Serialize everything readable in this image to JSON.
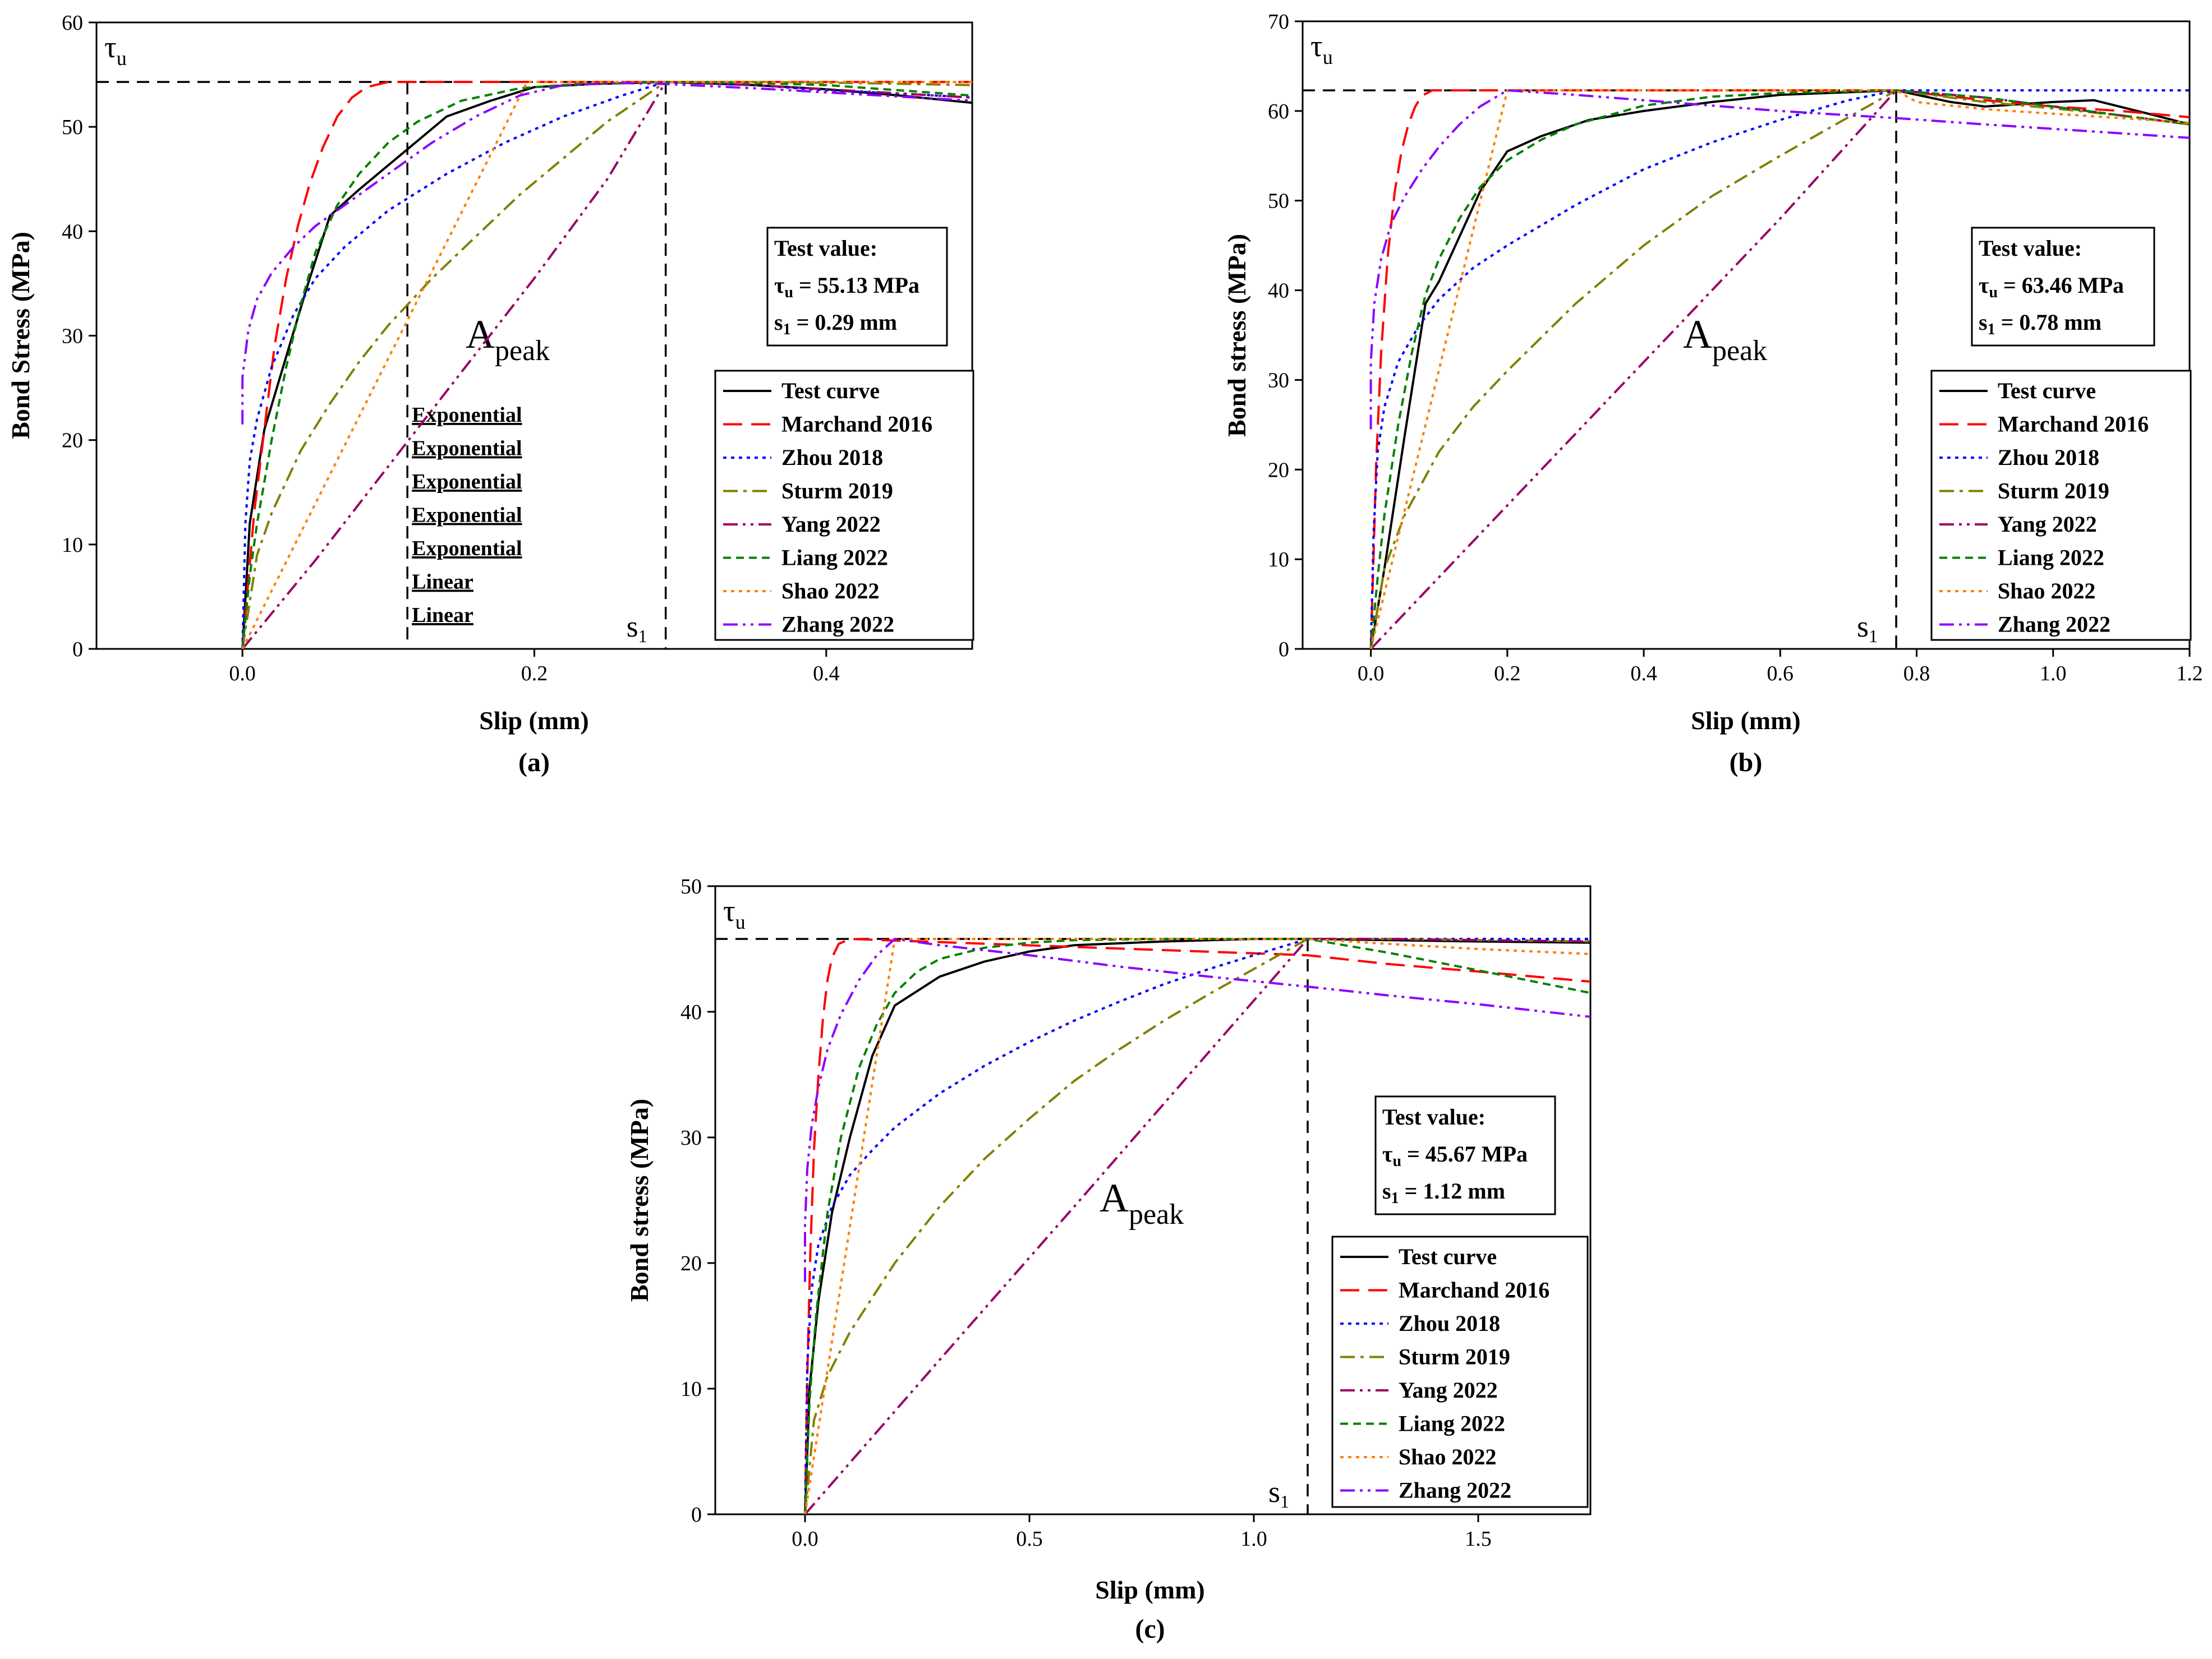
{
  "colors": {
    "Test curve": "#000000",
    "Marchand 2016": "#ff0000",
    "Zhou 2018": "#0000ff",
    "Sturm 2019": "#808000",
    "Yang 2022": "#990066",
    "Liang 2022": "#008000",
    "Shao 2022": "#ff8000",
    "Zhang 2022": "#8b00ff"
  },
  "chart_data": [
    {
      "type": "line",
      "panel_label": "(a)",
      "xlabel": "Slip (mm)",
      "ylabel": "Bond Stress (MPa)",
      "xlim": [
        -0.1,
        0.5
      ],
      "ylim": [
        0,
        60
      ],
      "xticks": [
        0.0,
        0.2,
        0.4
      ],
      "xtick_labels": [
        "0.0",
        "0.2",
        "0.4"
      ],
      "yticks": [
        0,
        10,
        20,
        30,
        40,
        50,
        60
      ],
      "ytick_labels": [
        "0",
        "10",
        "20",
        "30",
        "40",
        "50",
        "60"
      ],
      "tau_u_symbol": "τ",
      "tau_u_sub": "u",
      "tau_line_y": 54.3,
      "s1_x": 0.29,
      "s1_symbol": "s",
      "s1_sub": "1",
      "area_label": "A",
      "area_sub": "peak",
      "divider_x": 0.113,
      "side_labels": [
        "Exponential",
        "Exponential",
        "Exponential",
        "Exponential",
        "Exponential",
        "Linear",
        "Linear"
      ],
      "test_box": {
        "title": "Test value:",
        "tau_prefix": "τ",
        "tau_sub": "u",
        "tau_value": " = 55.13 MPa",
        "s_prefix": "s",
        "s_sub": "1",
        "s_value": " = 0.29 mm"
      },
      "legend_position": "right",
      "series": [
        {
          "name": "Test curve",
          "style": "solid",
          "x": [
            0,
            0.005,
            0.015,
            0.03,
            0.045,
            0.06,
            0.08,
            0.11,
            0.14,
            0.17,
            0.2,
            0.24,
            0.29,
            0.35,
            0.4,
            0.45,
            0.5
          ],
          "y": [
            0,
            12,
            21,
            28,
            35,
            41.5,
            44,
            47.5,
            51,
            52.5,
            53.8,
            54.1,
            54.3,
            54,
            53.6,
            53,
            52.3
          ]
        },
        {
          "name": "Marchand 2016",
          "style": "dashed",
          "x": [
            0,
            0.008,
            0.015,
            0.022,
            0.03,
            0.038,
            0.046,
            0.055,
            0.065,
            0.075,
            0.085,
            0.1,
            0.29,
            0.5
          ],
          "y": [
            0,
            13,
            21,
            29,
            35.5,
            40.5,
            44.5,
            48,
            51,
            52.8,
            53.8,
            54.3,
            54.3,
            54.3
          ]
        },
        {
          "name": "Zhou 2018",
          "style": "dotted",
          "x": [
            0,
            0.002,
            0.005,
            0.01,
            0.02,
            0.035,
            0.05,
            0.07,
            0.1,
            0.14,
            0.18,
            0.22,
            0.26,
            0.29,
            0.35,
            0.4,
            0.45,
            0.5
          ],
          "y": [
            0,
            12,
            18,
            22,
            27,
            32,
            35.5,
            38.5,
            42,
            45.5,
            48.5,
            51,
            53,
            54.3,
            54,
            53.5,
            53.2,
            52.8
          ]
        },
        {
          "name": "Sturm 2019",
          "style": "dashdot",
          "x": [
            0,
            0.01,
            0.02,
            0.04,
            0.06,
            0.08,
            0.1,
            0.13,
            0.16,
            0.19,
            0.22,
            0.25,
            0.29,
            0.35,
            0.42,
            0.5
          ],
          "y": [
            0,
            9,
            13,
            19,
            23.5,
            27.5,
            31,
            35.5,
            39.5,
            43.5,
            47,
            50.5,
            54.3,
            54.3,
            54.2,
            54
          ]
        },
        {
          "name": "Yang 2022",
          "style": "dashdotdot",
          "x": [
            0,
            0.05,
            0.1,
            0.15,
            0.2,
            0.25,
            0.29,
            0.35,
            0.4,
            0.45,
            0.5
          ],
          "y": [
            0,
            8.5,
            17.5,
            26.5,
            35.5,
            45,
            54.3,
            54,
            53.6,
            53.2,
            52.8
          ]
        },
        {
          "name": "Liang 2022",
          "style": "shortdash",
          "x": [
            0,
            0.005,
            0.01,
            0.02,
            0.03,
            0.04,
            0.05,
            0.065,
            0.08,
            0.1,
            0.12,
            0.15,
            0.19,
            0.23,
            0.29,
            0.35,
            0.4,
            0.45,
            0.5
          ],
          "y": [
            0,
            7,
            12,
            20,
            27,
            33,
            38,
            42.5,
            45.5,
            48.5,
            50.5,
            52.5,
            53.7,
            54.1,
            54.3,
            54.2,
            54,
            53.5,
            53
          ]
        },
        {
          "name": "Shao 2022",
          "style": "dotted",
          "x": [
            0,
            0.195,
            0.29,
            0.35,
            0.4,
            0.45,
            0.5
          ],
          "y": [
            0,
            54.3,
            54.3,
            54.3,
            54.3,
            54.3,
            54.3
          ]
        },
        {
          "name": "Zhang 2022",
          "style": "dashdotdot",
          "x": [
            0,
            0.0,
            0.004,
            0.01,
            0.02,
            0.035,
            0.05,
            0.07,
            0.1,
            0.13,
            0.16,
            0.19,
            0.22,
            0.26,
            0.29,
            0.35,
            0.4,
            0.45,
            0.5
          ],
          "y": [
            21.5,
            26,
            30.5,
            33.5,
            36,
            38.5,
            40.5,
            42.5,
            45.5,
            48.5,
            51,
            53,
            54,
            54.2,
            54.1,
            53.7,
            53.3,
            52.9,
            52.5
          ]
        }
      ]
    },
    {
      "type": "line",
      "panel_label": "(b)",
      "xlabel": "Slip (mm)",
      "ylabel": "Bond stress (MPa)",
      "xlim": [
        -0.1,
        1.2
      ],
      "ylim": [
        0,
        70
      ],
      "xticks": [
        -0.0,
        0.2,
        0.4,
        0.6,
        0.8,
        1.0,
        1.2
      ],
      "xtick_labels": [
        "0.0",
        "0.2",
        "0.4",
        "0.6",
        "0.8",
        "1.0",
        "1.2"
      ],
      "yticks": [
        0,
        10,
        20,
        30,
        40,
        50,
        60,
        70
      ],
      "ytick_labels": [
        "0",
        "10",
        "20",
        "30",
        "40",
        "50",
        "60",
        "70"
      ],
      "tau_u_symbol": "τ",
      "tau_u_sub": "u",
      "tau_line_y": 62.3,
      "s1_x": 0.77,
      "s1_symbol": "s",
      "s1_sub": "1",
      "area_label": "A",
      "area_sub": "peak",
      "test_box": {
        "title": "Test value:",
        "tau_prefix": "τ",
        "tau_sub": "u",
        "tau_value": " = 63.46 MPa",
        "s_prefix": "s",
        "s_sub": "1",
        "s_value": " = 0.78 mm"
      },
      "legend_position": "right",
      "series": [
        {
          "name": "Test curve",
          "style": "solid",
          "x": [
            0,
            0.02,
            0.05,
            0.08,
            0.1,
            0.13,
            0.16,
            0.2,
            0.25,
            0.32,
            0.4,
            0.5,
            0.6,
            0.77,
            0.85,
            0.9,
            1.0,
            1.06,
            1.15,
            1.2
          ],
          "y": [
            0,
            9,
            24,
            38.5,
            41,
            46,
            51,
            55.5,
            57.2,
            59,
            60,
            61,
            61.8,
            62.3,
            61,
            60.5,
            61,
            61.2,
            59.5,
            58.5
          ]
        },
        {
          "name": "Marchand 2016",
          "style": "dashed",
          "x": [
            0,
            0.008,
            0.015,
            0.025,
            0.035,
            0.045,
            0.055,
            0.065,
            0.075,
            0.09,
            0.77,
            0.9,
            1.0,
            1.1,
            1.2
          ],
          "y": [
            0,
            21,
            33,
            44,
            51,
            55.5,
            58.5,
            60.5,
            61.7,
            62.3,
            62.3,
            61.2,
            60.5,
            60,
            59.3
          ]
        },
        {
          "name": "Zhou 2018",
          "style": "dotted",
          "x": [
            0,
            0.004,
            0.01,
            0.02,
            0.04,
            0.07,
            0.1,
            0.15,
            0.2,
            0.3,
            0.4,
            0.5,
            0.6,
            0.7,
            0.77,
            0.9,
            1.0,
            1.1,
            1.2
          ],
          "y": [
            0,
            13,
            22,
            27,
            32,
            36,
            39,
            42.5,
            45,
            49.5,
            53.5,
            56.5,
            59,
            61.2,
            62.3,
            62.3,
            62.3,
            62.3,
            62.3
          ]
        },
        {
          "name": "Sturm 2019",
          "style": "dashdot",
          "x": [
            0,
            0.02,
            0.05,
            0.1,
            0.15,
            0.2,
            0.3,
            0.4,
            0.5,
            0.6,
            0.7,
            0.77,
            0.9,
            1.0,
            1.1,
            1.2
          ],
          "y": [
            0,
            9,
            15,
            22,
            27,
            31,
            38.5,
            45,
            50.5,
            55,
            59.3,
            62.3,
            61,
            60.3,
            59.5,
            58.5
          ]
        },
        {
          "name": "Yang 2022",
          "style": "dashdotdot",
          "x": [
            0,
            0.2,
            0.4,
            0.6,
            0.77,
            0.9,
            1.0,
            1.1,
            1.2
          ],
          "y": [
            0,
            16,
            32,
            48,
            62.3,
            61.5,
            60.5,
            59.5,
            58.5
          ]
        },
        {
          "name": "Liang 2022",
          "style": "shortdash",
          "x": [
            0,
            0.01,
            0.02,
            0.04,
            0.06,
            0.08,
            0.1,
            0.13,
            0.16,
            0.2,
            0.25,
            0.3,
            0.4,
            0.5,
            0.6,
            0.77,
            0.9,
            1.0,
            1.1,
            1.2
          ],
          "y": [
            0,
            8,
            15,
            25,
            33,
            39.5,
            43.5,
            48,
            51.5,
            54.5,
            56.8,
            58.5,
            60.6,
            61.6,
            62,
            62.3,
            61.5,
            60.5,
            59.5,
            58.5
          ]
        },
        {
          "name": "Shao 2022",
          "style": "dotted",
          "x": [
            0,
            0.2,
            0.77,
            0.8,
            0.9,
            1.0,
            1.1,
            1.2
          ],
          "y": [
            0,
            62.3,
            62.3,
            61,
            60.2,
            59.7,
            59.2,
            58.7
          ]
        },
        {
          "name": "Zhang 2022",
          "style": "dashdotdot",
          "x": [
            0,
            0.0,
            0.005,
            0.015,
            0.03,
            0.05,
            0.075,
            0.1,
            0.13,
            0.16,
            0.2,
            0.3,
            0.4,
            0.5,
            0.6,
            0.77,
            0.9,
            1.0,
            1.1,
            1.2
          ],
          "y": [
            24.5,
            32,
            38.5,
            43.5,
            47.5,
            50.5,
            53.5,
            56,
            58.5,
            60.5,
            62.3,
            61.8,
            61.2,
            60.6,
            60,
            59.2,
            58.5,
            58,
            57.5,
            57
          ]
        }
      ]
    },
    {
      "type": "line",
      "panel_label": "(c)",
      "xlabel": "Slip (mm)",
      "ylabel": "Bond stress (MPa)",
      "xlim": [
        -0.2,
        1.75
      ],
      "ylim": [
        0,
        50
      ],
      "xticks": [
        0.0,
        0.5,
        1.0,
        1.5
      ],
      "xtick_labels": [
        "0.0",
        "0.5",
        "1.0",
        "1.5"
      ],
      "yticks": [
        0,
        10,
        20,
        30,
        40,
        50
      ],
      "ytick_labels": [
        "0",
        "10",
        "20",
        "30",
        "40",
        "50"
      ],
      "tau_u_symbol": "τ",
      "tau_u_sub": "u",
      "tau_line_y": 45.8,
      "s1_x": 1.12,
      "s1_symbol": "s",
      "s1_sub": "1",
      "area_label": "A",
      "area_sub": "peak",
      "test_box": {
        "title": "Test value:",
        "tau_prefix": "τ",
        "tau_sub": "u",
        "tau_value": " = 45.67 MPa",
        "s_prefix": "s",
        "s_sub": "1",
        "s_value": " = 1.12 mm"
      },
      "legend_position": "right",
      "series": [
        {
          "name": "Test curve",
          "style": "solid",
          "x": [
            0,
            0.01,
            0.03,
            0.06,
            0.1,
            0.15,
            0.2,
            0.3,
            0.4,
            0.5,
            0.6,
            0.8,
            1.0,
            1.12,
            1.3,
            1.5,
            1.75
          ],
          "y": [
            0,
            10,
            17,
            24,
            30,
            36.5,
            40.5,
            42.8,
            44,
            44.8,
            45.3,
            45.6,
            45.8,
            45.8,
            45.7,
            45.6,
            45.5
          ]
        },
        {
          "name": "Marchand 2016",
          "style": "dashed",
          "x": [
            0,
            0.005,
            0.012,
            0.02,
            0.03,
            0.04,
            0.05,
            0.06,
            0.075,
            0.1,
            1.12,
            1.3,
            1.5,
            1.75
          ],
          "y": [
            0,
            11,
            21,
            29,
            35,
            39.5,
            42.5,
            44.3,
            45.4,
            45.8,
            44.5,
            43.8,
            43.2,
            42.4
          ]
        },
        {
          "name": "Zhou 2018",
          "style": "dotted",
          "x": [
            0,
            0.005,
            0.015,
            0.03,
            0.06,
            0.1,
            0.15,
            0.2,
            0.3,
            0.4,
            0.5,
            0.6,
            0.7,
            0.8,
            0.9,
            1.0,
            1.12,
            1.3,
            1.5,
            1.75
          ],
          "y": [
            0,
            12,
            18,
            21.5,
            24.5,
            27,
            29,
            30.8,
            33.5,
            35.7,
            37.6,
            39.3,
            40.8,
            42.2,
            43.4,
            44.5,
            45.8,
            45.8,
            45.8,
            45.8
          ]
        },
        {
          "name": "Sturm 2019",
          "style": "dashdot",
          "x": [
            0,
            0.02,
            0.05,
            0.1,
            0.2,
            0.3,
            0.4,
            0.5,
            0.6,
            0.7,
            0.8,
            0.9,
            1.0,
            1.12,
            1.3,
            1.5,
            1.75
          ],
          "y": [
            0,
            7.5,
            11,
            14.5,
            20,
            24.5,
            28.3,
            31.5,
            34.5,
            37,
            39.3,
            41.4,
            43.4,
            45.8,
            45.8,
            45.7,
            45.6
          ]
        },
        {
          "name": "Yang 2022",
          "style": "dashdotdot",
          "x": [
            0,
            0.3,
            0.6,
            0.9,
            1.12,
            1.3,
            1.5,
            1.75
          ],
          "y": [
            0,
            12.3,
            24.5,
            36.8,
            45.8,
            45.8,
            45.7,
            45.6
          ]
        },
        {
          "name": "Liang 2022",
          "style": "shortdash",
          "x": [
            0,
            0.01,
            0.025,
            0.05,
            0.08,
            0.12,
            0.16,
            0.2,
            0.25,
            0.3,
            0.4,
            0.5,
            0.6,
            0.8,
            1.0,
            1.12,
            1.3,
            1.5,
            1.75
          ],
          "y": [
            0,
            9,
            16,
            24,
            30,
            35.5,
            39,
            41.5,
            43.2,
            44.2,
            45.1,
            45.5,
            45.7,
            45.8,
            45.8,
            45.8,
            44.7,
            43.3,
            41.5
          ]
        },
        {
          "name": "Shao 2022",
          "style": "dotted",
          "x": [
            0,
            0.2,
            1.12,
            1.3,
            1.5,
            1.75
          ],
          "y": [
            0,
            45.8,
            45.8,
            45.4,
            45,
            44.6
          ]
        },
        {
          "name": "Zhang 2022",
          "style": "dashdotdot",
          "x": [
            0,
            0.0,
            0.005,
            0.015,
            0.03,
            0.05,
            0.08,
            0.12,
            0.16,
            0.2,
            0.3,
            0.5,
            0.7,
            0.9,
            1.12,
            1.3,
            1.5,
            1.75
          ],
          "y": [
            18.5,
            23,
            27.5,
            31,
            34,
            37,
            39.8,
            42.5,
            44.5,
            45.8,
            45.3,
            44.5,
            43.6,
            42.8,
            42,
            41.3,
            40.6,
            39.6
          ]
        }
      ]
    }
  ]
}
